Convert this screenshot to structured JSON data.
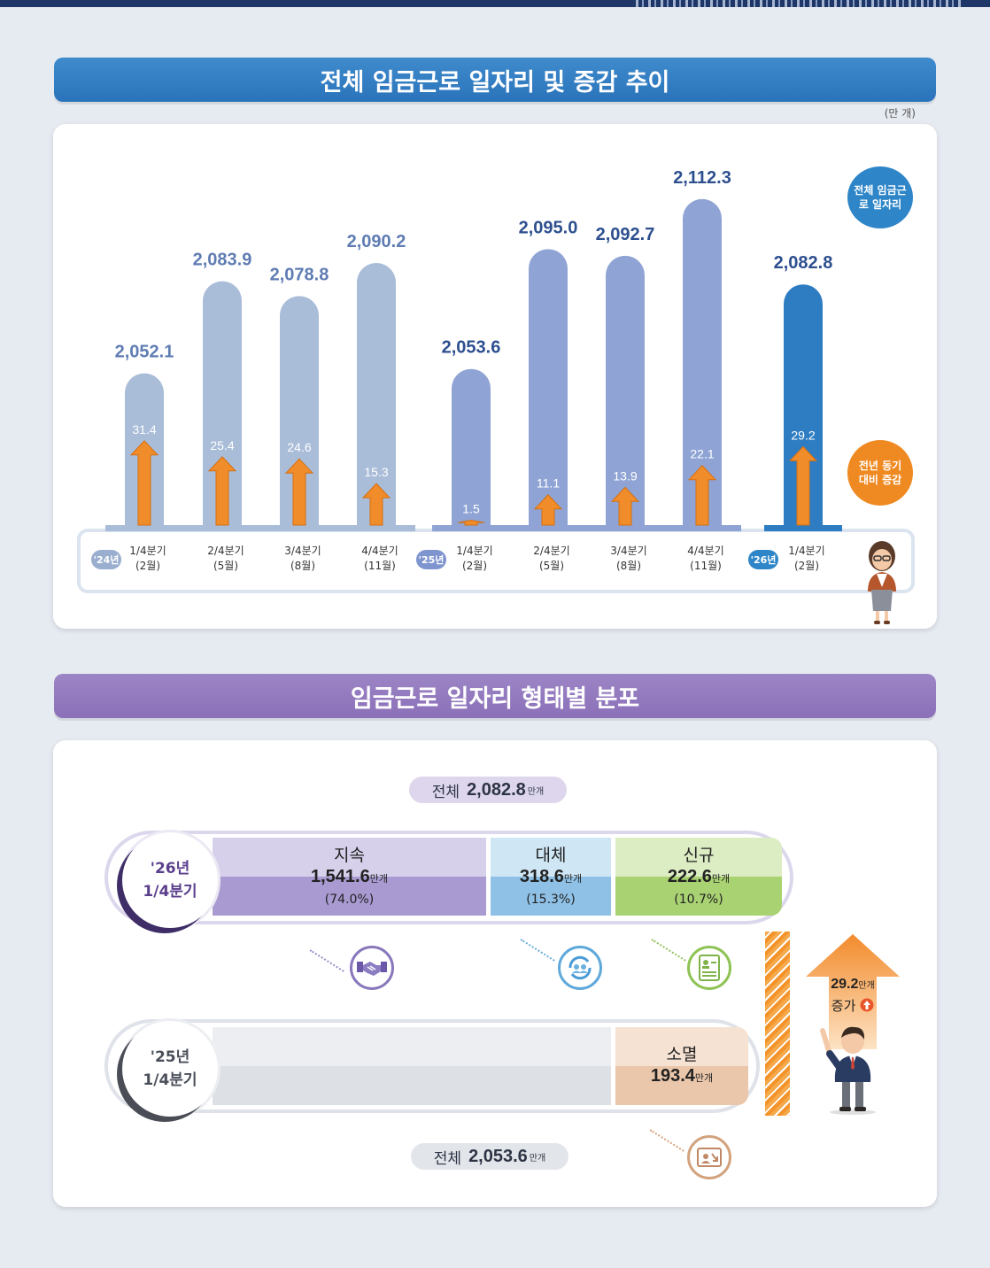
{
  "section1": {
    "title": "전체 임금근로 일자리 및 증감 추이",
    "unit": "(만 개)",
    "legend_total": "전체 임금근로 일자리",
    "legend_change": "전년 동기대비 증감"
  },
  "chart_data": {
    "type": "bar",
    "title": "전체 임금근로 일자리 및 증감 추이",
    "unit": "만 개",
    "year_groups": [
      "'24년",
      "'25년",
      "'26년"
    ],
    "categories": [
      {
        "quarter": "1/4분기",
        "month": "(2월)",
        "year": "'24년"
      },
      {
        "quarter": "2/4분기",
        "month": "(5월)",
        "year": "'24년"
      },
      {
        "quarter": "3/4분기",
        "month": "(8월)",
        "year": "'24년"
      },
      {
        "quarter": "4/4분기",
        "month": "(11월)",
        "year": "'24년"
      },
      {
        "quarter": "1/4분기",
        "month": "(2월)",
        "year": "'25년"
      },
      {
        "quarter": "2/4분기",
        "month": "(5월)",
        "year": "'25년"
      },
      {
        "quarter": "3/4분기",
        "month": "(8월)",
        "year": "'25년"
      },
      {
        "quarter": "4/4분기",
        "month": "(11월)",
        "year": "'25년"
      },
      {
        "quarter": "1/4분기",
        "month": "(2월)",
        "year": "'26년"
      }
    ],
    "series": [
      {
        "name": "전체 임금근로 일자리",
        "values": [
          2052.1,
          2083.9,
          2078.8,
          2090.2,
          2053.6,
          2095.0,
          2092.7,
          2112.3,
          2082.8
        ],
        "labels": [
          "2,052.1",
          "2,083.9",
          "2,078.8",
          "2,090.2",
          "2,053.6",
          "2,095.0",
          "2,092.7",
          "2,112.3",
          "2,082.8"
        ]
      },
      {
        "name": "전년 동기대비 증감",
        "values": [
          31.4,
          25.4,
          24.6,
          15.3,
          1.5,
          11.1,
          13.9,
          22.1,
          29.2
        ],
        "labels": [
          "31.4",
          "25.4",
          "24.6",
          "15.3",
          "1.5",
          "11.1",
          "13.9",
          "22.1",
          "29.2"
        ]
      }
    ],
    "colors": {
      "y24": "#a9bcd8",
      "y25": "#8fa4d4",
      "y26": "#2e7dc3",
      "change": "#f08c2a",
      "value24": "#5f7cb3",
      "value25": "#2d4f8f"
    }
  },
  "section2": {
    "title": "임금근로 일자리 형태별 분포",
    "total_2026": {
      "prefix": "전체",
      "value": "2,082.8",
      "unit": "만개"
    },
    "total_2025": {
      "prefix": "전체",
      "value": "2,053.6",
      "unit": "만개"
    },
    "row_2026": {
      "year": "'26년",
      "quarter": "1/4분기"
    },
    "row_2025": {
      "year": "'25년",
      "quarter": "1/4분기"
    },
    "jisok": {
      "name": "지속",
      "value": "1,541.6",
      "unit": "만개",
      "pct": "(74.0%)"
    },
    "daeche": {
      "name": "대체",
      "value": "318.6",
      "unit": "만개",
      "pct": "(15.3%)"
    },
    "singyu": {
      "name": "신규",
      "value": "222.6",
      "unit": "만개",
      "pct": "(10.7%)"
    },
    "somyeol": {
      "name": "소멸",
      "value": "193.4",
      "unit": "만개"
    },
    "increase": {
      "value": "29.2",
      "unit": "만개",
      "label": "증가"
    },
    "icons": [
      "handshake-icon",
      "rotation-icon",
      "new-document-icon",
      "removal-icon",
      "up-arrow-icon"
    ]
  }
}
